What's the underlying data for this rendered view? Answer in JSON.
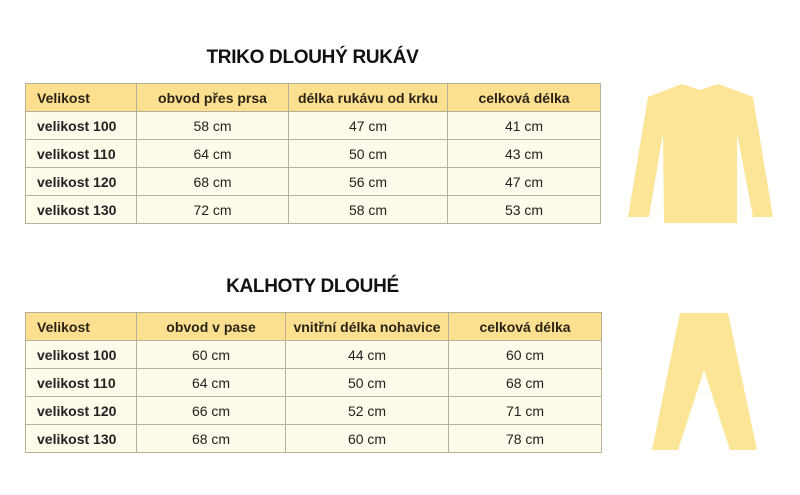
{
  "accent_color": "#fde08f",
  "tables": [
    {
      "title": "TRIKO DLOUHÝ RUKÁV",
      "icon": "long-sleeve-shirt-icon",
      "headers": [
        "Velikost",
        "obvod přes prsa",
        "délka rukávu od krku",
        "celková délka"
      ],
      "rows": [
        [
          "velikost 100",
          "58 cm",
          "47 cm",
          "41 cm"
        ],
        [
          "velikost 110",
          "64 cm",
          "50 cm",
          "43 cm"
        ],
        [
          "velikost 120",
          "68 cm",
          "56 cm",
          "47 cm"
        ],
        [
          "velikost 130",
          "72 cm",
          "58 cm",
          "53 cm"
        ]
      ]
    },
    {
      "title": "KALHOTY DLOUHÉ",
      "icon": "long-pants-icon",
      "headers": [
        "Velikost",
        "obvod v pase",
        "vnitřní délka nohavice",
        "celková délka"
      ],
      "rows": [
        [
          "velikost 100",
          "60 cm",
          "44 cm",
          "60 cm"
        ],
        [
          "velikost 110",
          "64 cm",
          "50 cm",
          "68 cm"
        ],
        [
          "velikost 120",
          "66 cm",
          "52 cm",
          "71 cm"
        ],
        [
          "velikost 130",
          "68 cm",
          "60 cm",
          "78 cm"
        ]
      ]
    }
  ]
}
